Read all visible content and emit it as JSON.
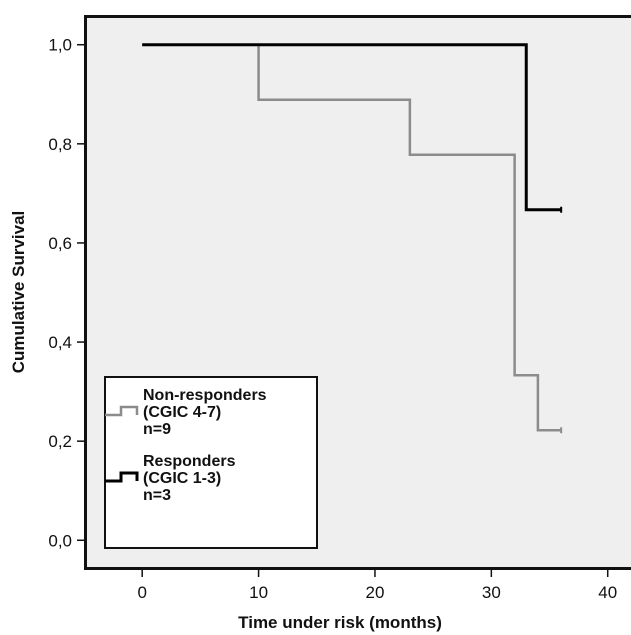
{
  "chart_data": {
    "type": "line",
    "step": true,
    "xlabel": "Time under risk (months)",
    "ylabel": "Cumulative Survival",
    "xlim": [
      -5,
      42
    ],
    "ylim": [
      -0.06,
      1.06
    ],
    "x_ticks": [
      0,
      10,
      20,
      30,
      40
    ],
    "x_tick_labels": [
      "0",
      "10",
      "20",
      "30",
      "40"
    ],
    "y_ticks": [
      0.0,
      0.2,
      0.4,
      0.6,
      0.8,
      1.0
    ],
    "y_tick_labels": [
      "0,0",
      "0,2",
      "0,4",
      "0,6",
      "0,8",
      "1,0"
    ],
    "grid": false,
    "legend_position": "bottom-left",
    "series": [
      {
        "name": "Non-responders (CGIC 4-7) n=9",
        "legend_lines": [
          "Non-responders",
          "(CGIC 4-7)",
          "n=9"
        ],
        "color": "#8c8c8c",
        "x": [
          0,
          10,
          23,
          32,
          34,
          36
        ],
        "y": [
          1.0,
          0.889,
          0.778,
          0.333,
          0.222,
          0.222
        ]
      },
      {
        "name": "Responders (CGIC 1-3) n=3",
        "legend_lines": [
          "Responders",
          "(CGIC 1-3)",
          "n=3"
        ],
        "color": "#000000",
        "x": [
          0,
          33,
          36
        ],
        "y": [
          1.0,
          0.667,
          0.667
        ]
      }
    ]
  },
  "plot_background": "#efefef"
}
